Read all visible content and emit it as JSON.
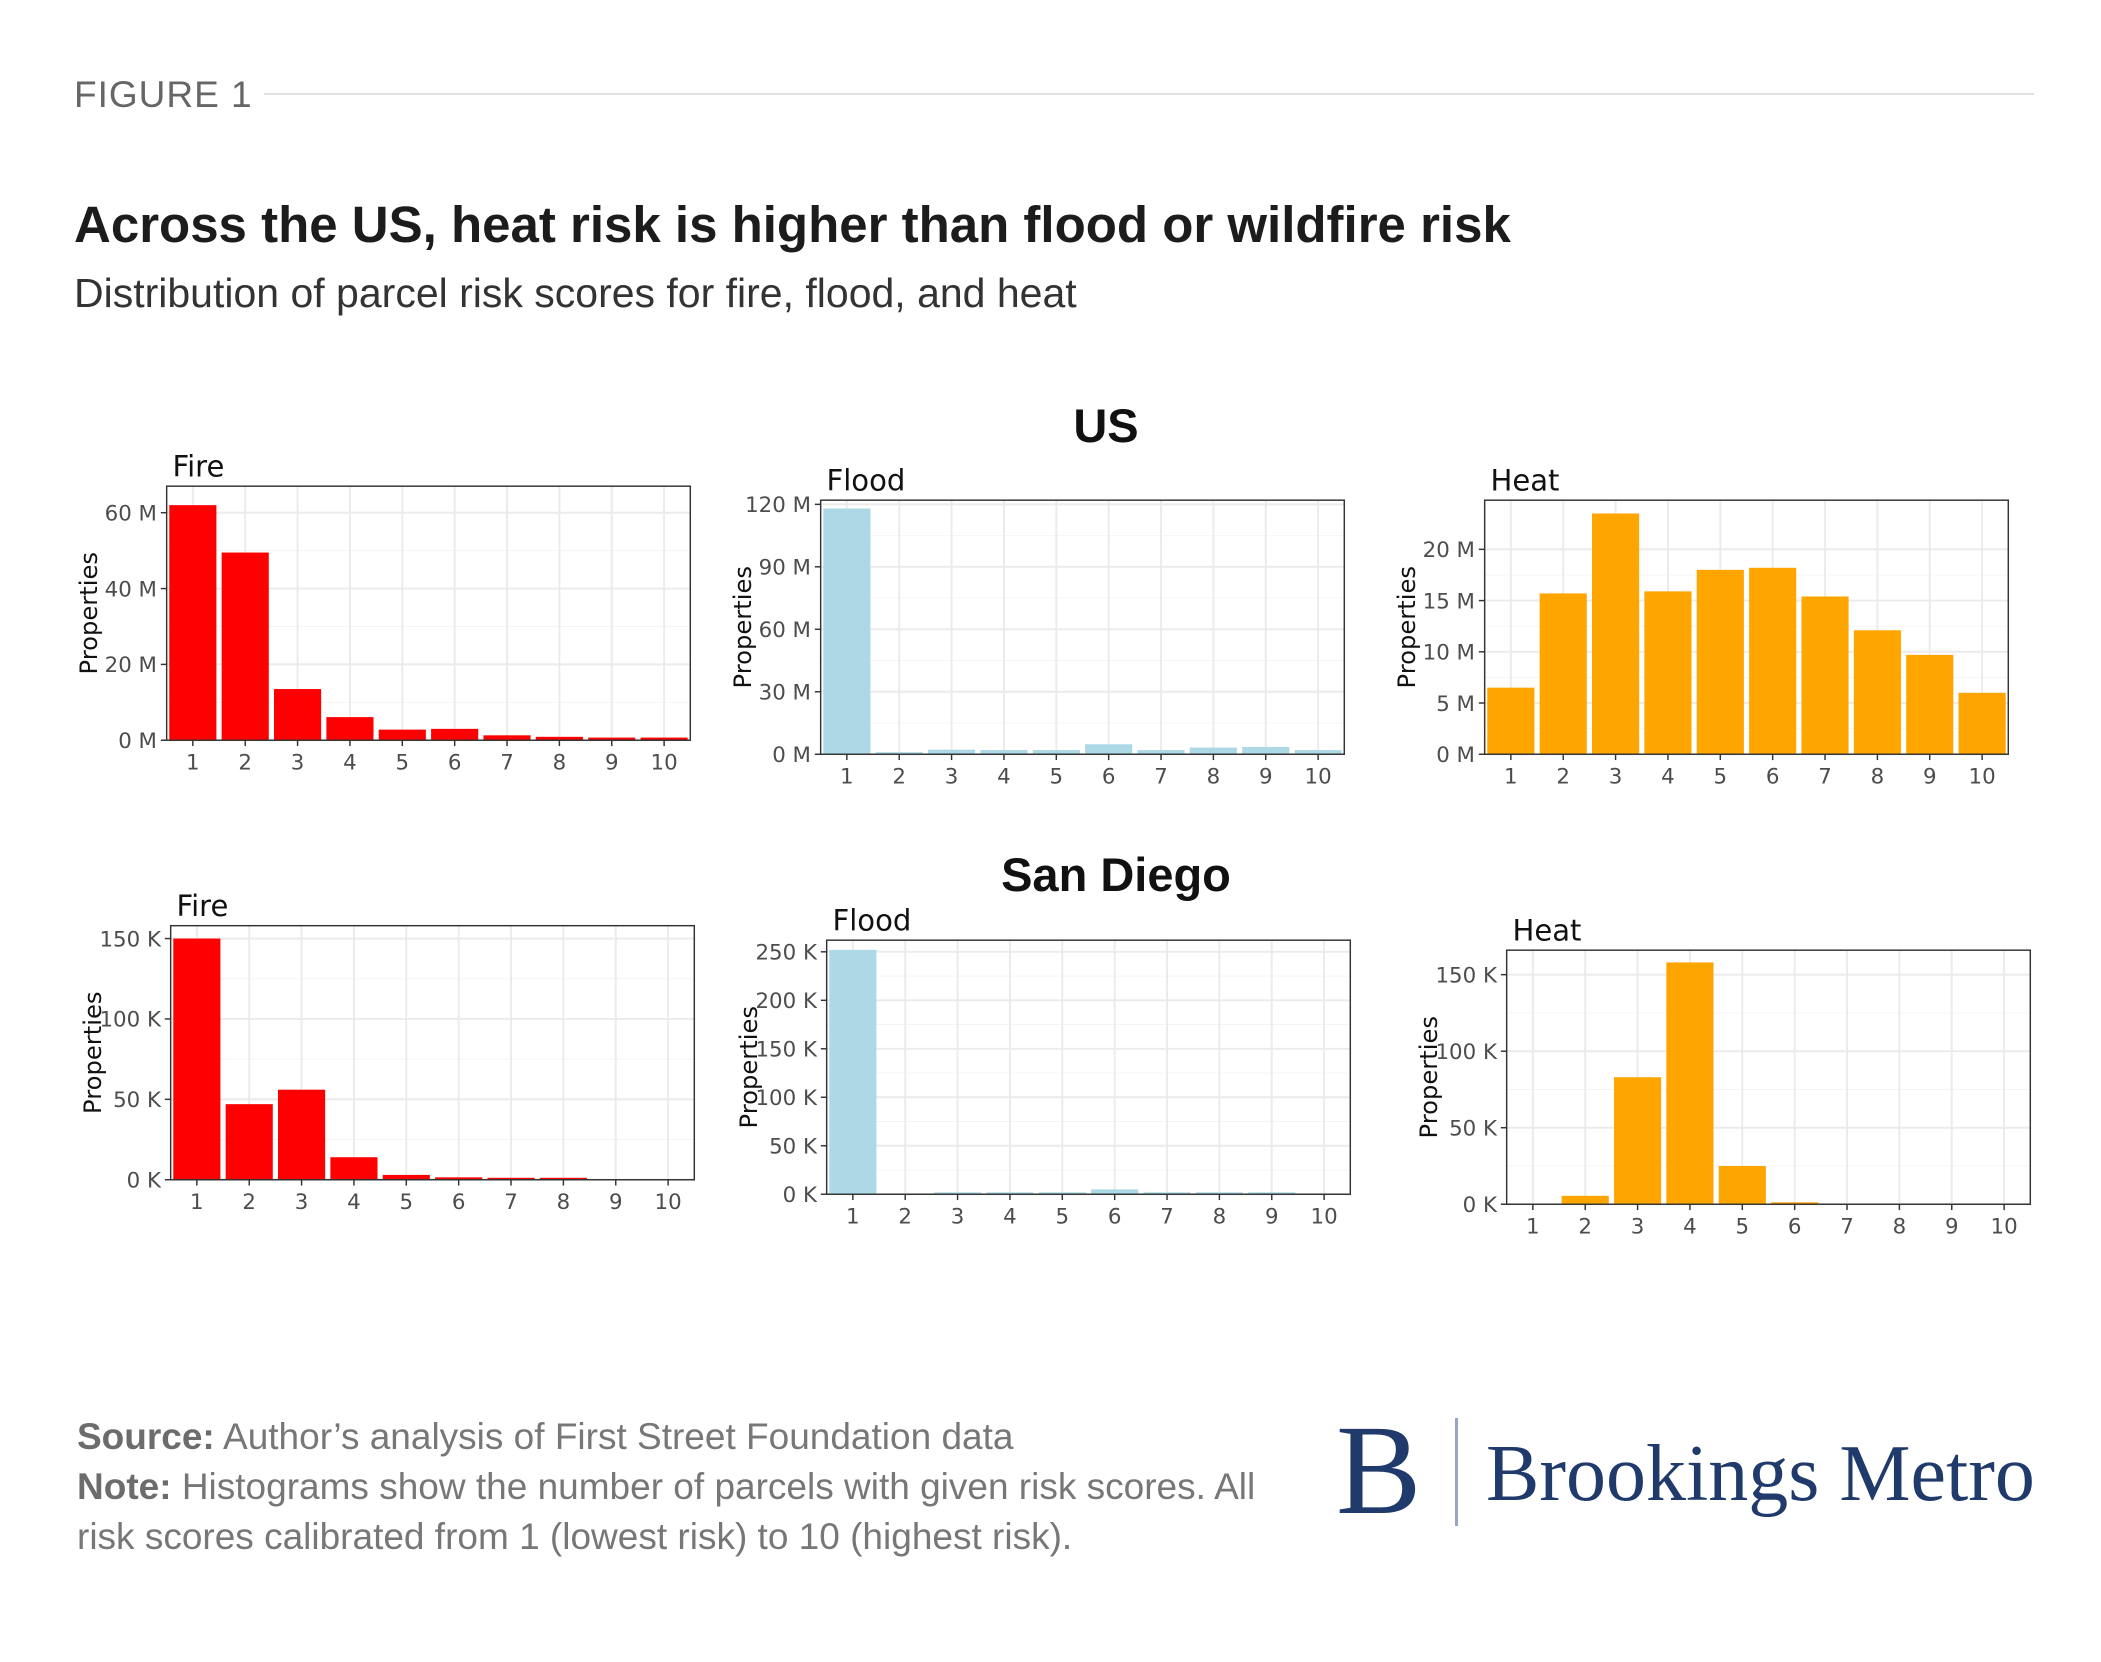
{
  "figure_label": "FIGURE 1",
  "title": "Across the US, heat risk is higher than flood or wildfire risk",
  "subtitle": "Distribution of parcel risk scores for fire, flood, and heat",
  "groups": {
    "us": "US",
    "sd": "San Diego"
  },
  "footer": {
    "source_label": "Source:",
    "source_text": "Author’s analysis of First Street Foundation data",
    "note_label": "Note:",
    "note_text": "Histograms show the number of parcels with given risk scores. All risk scores calibrated from 1 (lowest risk) to 10 (highest risk)."
  },
  "logo": {
    "mark": "B",
    "text": "Brookings Metro"
  },
  "colors": {
    "fire": "#ff0000",
    "flood": "#add8e6",
    "heat": "#ffa500",
    "brand": "#1f3a6b"
  },
  "chart_data": [
    {
      "id": "us-fire",
      "type": "bar",
      "group": "US",
      "title": "Fire",
      "ylabel": "Properties",
      "xlabel": "",
      "categories": [
        "1",
        "2",
        "3",
        "4",
        "5",
        "6",
        "7",
        "8",
        "9",
        "10"
      ],
      "values": [
        62000000,
        49500000,
        13500000,
        6100000,
        2800000,
        3000000,
        1300000,
        900000,
        700000,
        700000
      ],
      "ylim": [
        0,
        67000000
      ],
      "yticks": [
        0,
        20000000,
        40000000,
        60000000
      ],
      "ytick_labels": [
        "0 M",
        "20 M",
        "40 M",
        "60 M"
      ],
      "grid": true
    },
    {
      "id": "us-flood",
      "type": "bar",
      "group": "US",
      "title": "Flood",
      "ylabel": "Properties",
      "xlabel": "",
      "categories": [
        "1",
        "2",
        "3",
        "4",
        "5",
        "6",
        "7",
        "8",
        "9",
        "10"
      ],
      "values": [
        118000000,
        1000000,
        2200000,
        2000000,
        2000000,
        4800000,
        2000000,
        3200000,
        3500000,
        2000000
      ],
      "ylim": [
        0,
        122000000
      ],
      "yticks": [
        0,
        30000000,
        60000000,
        90000000,
        120000000
      ],
      "ytick_labels": [
        "0 M",
        "30 M",
        "60 M",
        "90 M",
        "120 M"
      ],
      "grid": true
    },
    {
      "id": "us-heat",
      "type": "bar",
      "group": "US",
      "title": "Heat",
      "ylabel": "Properties",
      "xlabel": "",
      "categories": [
        "1",
        "2",
        "3",
        "4",
        "5",
        "6",
        "7",
        "8",
        "9",
        "10"
      ],
      "values": [
        6500000,
        15700000,
        23500000,
        15900000,
        18000000,
        18200000,
        15400000,
        12100000,
        9700000,
        6000000
      ],
      "ylim": [
        0,
        24800000
      ],
      "yticks": [
        0,
        5000000,
        10000000,
        15000000,
        20000000
      ],
      "ytick_labels": [
        "0 M",
        "5 M",
        "10 M",
        "15 M",
        "20 M"
      ],
      "grid": true
    },
    {
      "id": "sd-fire",
      "type": "bar",
      "group": "San Diego",
      "title": "Fire",
      "ylabel": "Properties",
      "xlabel": "",
      "categories": [
        "1",
        "2",
        "3",
        "4",
        "5",
        "6",
        "7",
        "8",
        "9",
        "10"
      ],
      "values": [
        150000,
        47000,
        56000,
        14000,
        3000,
        1500,
        500,
        400,
        0,
        0
      ],
      "ylim": [
        0,
        158000
      ],
      "yticks": [
        0,
        50000,
        100000,
        150000
      ],
      "ytick_labels": [
        "0 K",
        "50 K",
        "100 K",
        "150 K"
      ],
      "grid": true
    },
    {
      "id": "sd-flood",
      "type": "bar",
      "group": "San Diego",
      "title": "Flood",
      "ylabel": "Properties",
      "xlabel": "",
      "categories": [
        "1",
        "2",
        "3",
        "4",
        "5",
        "6",
        "7",
        "8",
        "9",
        "10"
      ],
      "values": [
        252000,
        0,
        1500,
        1500,
        1500,
        5000,
        1500,
        1200,
        1200,
        0
      ],
      "ylim": [
        0,
        262000
      ],
      "yticks": [
        0,
        50000,
        100000,
        150000,
        200000,
        250000
      ],
      "ytick_labels": [
        "0 K",
        "50 K",
        "100 K",
        "150 K",
        "200 K",
        "250 K"
      ],
      "grid": true
    },
    {
      "id": "sd-heat",
      "type": "bar",
      "group": "San Diego",
      "title": "Heat",
      "ylabel": "Properties",
      "xlabel": "",
      "categories": [
        "1",
        "2",
        "3",
        "4",
        "5",
        "6",
        "7",
        "8",
        "9",
        "10"
      ],
      "values": [
        0,
        5500,
        83000,
        158000,
        25000,
        500,
        0,
        0,
        0,
        0
      ],
      "ylim": [
        0,
        166000
      ],
      "yticks": [
        0,
        50000,
        100000,
        150000
      ],
      "ytick_labels": [
        "0 K",
        "50 K",
        "100 K",
        "150 K"
      ],
      "grid": true
    }
  ]
}
